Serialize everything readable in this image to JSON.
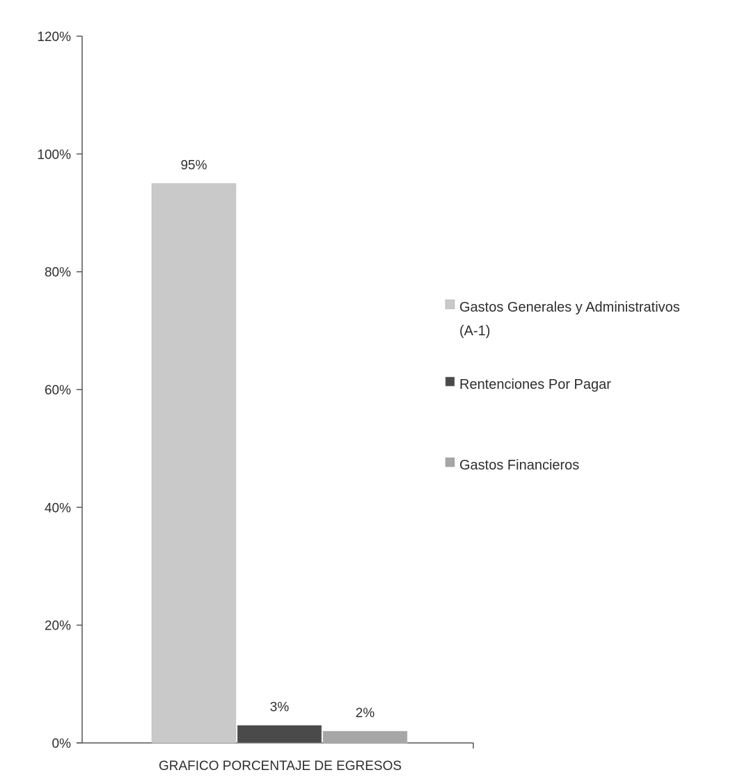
{
  "chart_data": {
    "type": "bar",
    "xlabel": "",
    "ylabel": "",
    "categories": [
      "GRAFICO PORCENTAJE DE EGRESOS"
    ],
    "series": [
      {
        "name": "Gastos Generales y Administrativos (A-1)",
        "legend_lines": [
          "Gastos Generales y Administrativos",
          "(A-1)"
        ],
        "values": [
          95
        ],
        "label": "95%",
        "color": "#c9c9c9"
      },
      {
        "name": "Rentenciones Por Pagar",
        "legend_lines": [
          "Rentenciones Por Pagar"
        ],
        "values": [
          3
        ],
        "label": "3%",
        "color": "#4a4a4a"
      },
      {
        "name": "Gastos Financieros",
        "legend_lines": [
          "Gastos Financieros"
        ],
        "values": [
          2
        ],
        "label": "2%",
        "color": "#a6a6a6"
      }
    ],
    "ylim": [
      0,
      120
    ],
    "yticks": [
      0,
      20,
      40,
      60,
      80,
      100,
      120
    ],
    "ytick_labels": [
      "0%",
      "20%",
      "40%",
      "60%",
      "80%",
      "100%",
      "120%"
    ],
    "grid": false,
    "legend_position": "right"
  }
}
